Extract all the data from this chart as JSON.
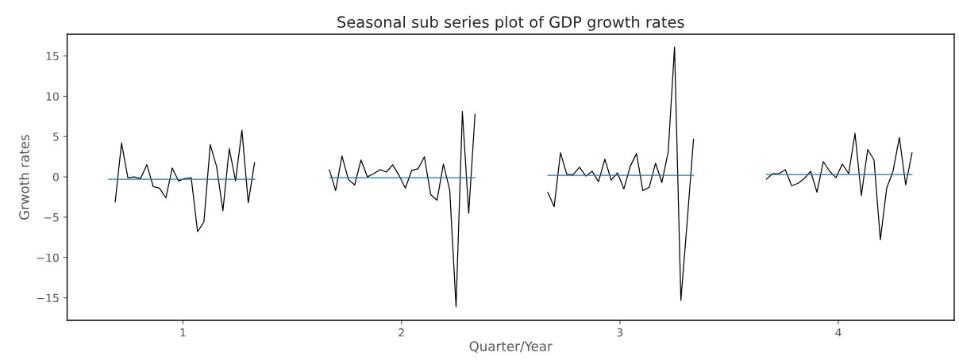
{
  "chart_data": {
    "type": "line",
    "title": "Seasonal sub series plot of GDP growth rates",
    "xlabel": "Quarter/Year",
    "ylabel": "Grwoth rates",
    "xlim": [
      0.47,
      4.53
    ],
    "xticks": [
      1,
      2,
      3,
      4
    ],
    "ylim": [
      -17.8,
      17.7
    ],
    "yticks": [
      {
        "value": -15,
        "label": "−15"
      },
      {
        "value": -10,
        "label": "−10"
      },
      {
        "value": -5,
        "label": "−5"
      },
      0,
      5,
      10,
      15
    ],
    "grid": false,
    "marker": "none",
    "line_style": "solid",
    "series": [
      {
        "color": "#000000",
        "x": [
          0.69,
          0.719,
          0.748,
          0.777,
          0.806,
          0.835,
          0.864,
          0.893,
          0.922,
          0.951,
          0.98,
          1.009,
          1.038,
          1.067,
          1.096,
          1.125,
          1.154,
          1.183,
          1.212,
          1.241,
          1.27,
          1.299,
          1.328
        ],
        "values": [
          -3.1,
          4.2,
          -0.1,
          0,
          -0.2,
          1.5,
          -1.2,
          -1.4,
          -2.6,
          1.1,
          -0.5,
          -0.2,
          -0.1,
          -6.8,
          -5.6,
          4.0,
          1.3,
          -4.2,
          3.5,
          -0.5,
          5.8,
          -3.2,
          1.8
        ]
      },
      {
        "color": "#1f77b4",
        "x": [
          0.66,
          1.33
        ],
        "values": [
          -0.3,
          -0.3
        ]
      },
      {
        "color": "#000000",
        "x": [
          1.67,
          1.699,
          1.728,
          1.757,
          1.786,
          1.815,
          1.844,
          1.873,
          1.902,
          1.931,
          1.96,
          1.989,
          2.018,
          2.047,
          2.076,
          2.105,
          2.134,
          2.163,
          2.192,
          2.221,
          2.25,
          2.279,
          2.308,
          2.337
        ],
        "values": [
          0.9,
          -1.7,
          2.6,
          -0.3,
          -1.0,
          2.1,
          0.0,
          0.4,
          0.9,
          0.6,
          1.5,
          0.2,
          -1.4,
          0.8,
          1.0,
          2.5,
          -2.2,
          -2.9,
          1.6,
          -1.6,
          -16.1,
          8.1,
          -4.5,
          7.8
        ]
      },
      {
        "color": "#1f77b4",
        "x": [
          1.67,
          2.337
        ],
        "values": [
          -0.1,
          -0.1
        ]
      },
      {
        "color": "#000000",
        "x": [
          2.67,
          2.699,
          2.728,
          2.757,
          2.786,
          2.815,
          2.844,
          2.873,
          2.902,
          2.931,
          2.96,
          2.989,
          3.018,
          3.047,
          3.076,
          3.105,
          3.134,
          3.163,
          3.192,
          3.221,
          3.25,
          3.279,
          3.308,
          3.337
        ],
        "values": [
          -1.9,
          -3.7,
          3.0,
          0.3,
          0.3,
          1.2,
          0.1,
          0.7,
          -0.6,
          2.2,
          -0.4,
          0.5,
          -1.5,
          1.3,
          2.9,
          -1.7,
          -1.3,
          1.7,
          -0.7,
          3.1,
          16.1,
          -15.3,
          -5.5,
          4.7
        ]
      },
      {
        "color": "#1f77b4",
        "x": [
          2.67,
          3.337
        ],
        "values": [
          0.2,
          0.2
        ]
      },
      {
        "color": "#000000",
        "x": [
          3.67,
          3.699,
          3.728,
          3.757,
          3.786,
          3.815,
          3.844,
          3.873,
          3.902,
          3.931,
          3.96,
          3.989,
          4.018,
          4.047,
          4.076,
          4.105,
          4.134,
          4.163,
          4.192,
          4.221,
          4.25,
          4.279,
          4.308,
          4.337
        ],
        "values": [
          -0.3,
          0.4,
          0.4,
          0.9,
          -1.1,
          -0.8,
          -0.2,
          0.7,
          -1.9,
          1.9,
          0.7,
          -0.1,
          1.6,
          0.4,
          5.4,
          -2.3,
          3.4,
          2.1,
          -7.8,
          -1.4,
          0.7,
          4.9,
          -1.0,
          3.0
        ]
      },
      {
        "color": "#1f77b4",
        "x": [
          3.67,
          4.337
        ],
        "values": [
          0.3,
          0.3
        ]
      }
    ]
  }
}
